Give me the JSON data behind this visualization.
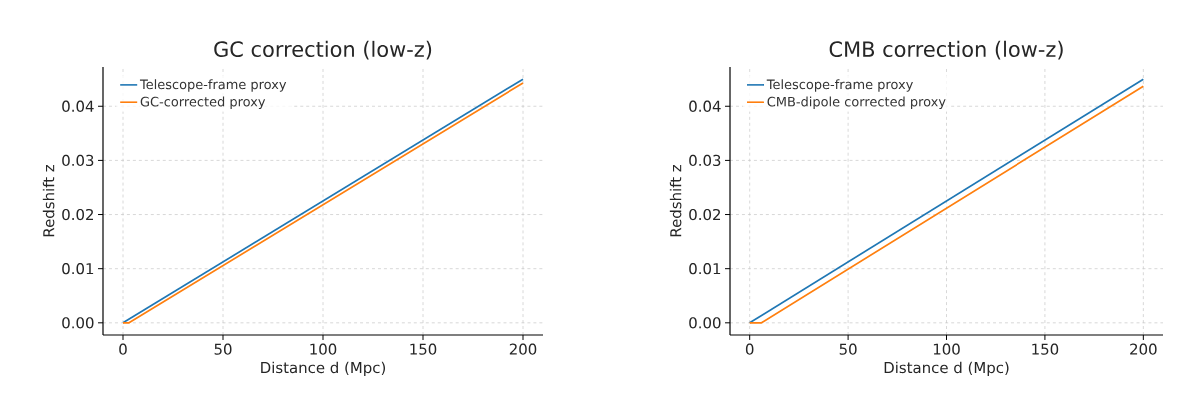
{
  "chart_data": [
    {
      "type": "line",
      "title": "GC correction (low-z)",
      "xlabel": "Distance d (Mpc)",
      "ylabel": "Redshift z",
      "series": [
        {
          "name": "Telescope-frame proxy",
          "color": "#1f77b4",
          "x": [
            0,
            200
          ],
          "values": [
            0,
            0.045
          ]
        },
        {
          "name": "GC-corrected proxy",
          "color": "#ff7f0e",
          "x": [
            0,
            3,
            200
          ],
          "values": [
            0,
            0,
            0.0443
          ]
        }
      ],
      "xlim": [
        -10,
        210
      ],
      "ylim": [
        -0.00225,
        0.04725
      ],
      "xticks": [
        0,
        50,
        100,
        150,
        200
      ],
      "yticks": [
        {
          "value": 0,
          "label": "0.00"
        },
        {
          "value": 0.01,
          "label": "0.01"
        },
        {
          "value": 0.02,
          "label": "0.02"
        },
        {
          "value": 0.03,
          "label": "0.03"
        },
        {
          "value": 0.04,
          "label": "0.04"
        }
      ],
      "grid": true,
      "legend": "top left",
      "marker": "none",
      "line_style": "solid"
    },
    {
      "type": "line",
      "title": "CMB correction (low-z)",
      "xlabel": "Distance d (Mpc)",
      "ylabel": "Redshift z",
      "series": [
        {
          "name": "Telescope-frame proxy",
          "color": "#1f77b4",
          "x": [
            0,
            200
          ],
          "values": [
            0,
            0.045
          ]
        },
        {
          "name": "CMB-dipole corrected proxy",
          "color": "#ff7f0e",
          "x": [
            0,
            6,
            200
          ],
          "values": [
            0,
            0,
            0.0437
          ]
        }
      ],
      "xlim": [
        -10,
        210
      ],
      "ylim": [
        -0.00225,
        0.04725
      ],
      "xticks": [
        0,
        50,
        100,
        150,
        200
      ],
      "yticks": [
        {
          "value": 0,
          "label": "0.00"
        },
        {
          "value": 0.01,
          "label": "0.01"
        },
        {
          "value": 0.02,
          "label": "0.02"
        },
        {
          "value": 0.03,
          "label": "0.03"
        },
        {
          "value": 0.04,
          "label": "0.04"
        }
      ],
      "grid": true,
      "legend": "top left",
      "marker": "none",
      "line_style": "solid"
    }
  ]
}
